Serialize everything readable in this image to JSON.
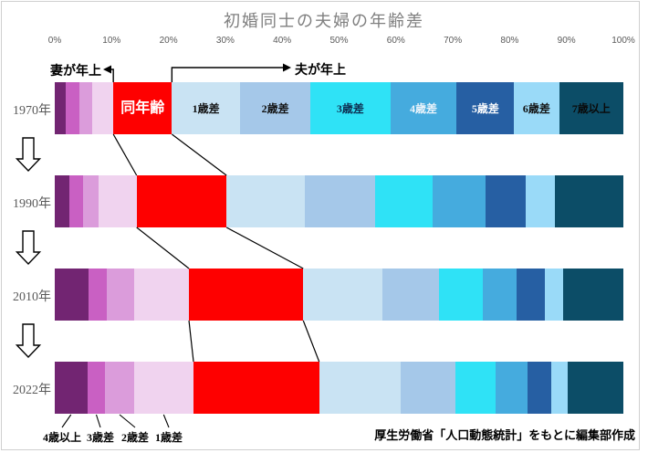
{
  "title": "初婚同士の夫婦の年齢差",
  "annotations": {
    "wife_older": "妻が年上",
    "husband_older": "夫が年上"
  },
  "x_axis": {
    "ticks": [
      "0%",
      "10%",
      "20%",
      "30%",
      "40%",
      "50%",
      "60%",
      "70%",
      "80%",
      "90%",
      "100%"
    ],
    "range": [
      0,
      100
    ]
  },
  "bottom_labels": [
    "4歳以上",
    "3歳差",
    "2歳差",
    "1歳差"
  ],
  "footer": "厚生労働省「人口動態統計」をもとに編集部作成",
  "colors": {
    "same_age_red": "#fe0000",
    "title_gray": "#7f7f7f",
    "axis_gray": "#595959"
  },
  "chart_data": {
    "type": "bar",
    "orientation": "horizontal-stacked",
    "categories": [
      "1970年",
      "1990年",
      "2010年",
      "2022年"
    ],
    "x_range_percent": [
      0,
      100
    ],
    "legend_position": "labels-inside-first-bar",
    "grid": false,
    "series": [
      {
        "name": "妻が4歳以上年上",
        "label": "",
        "label_color": "",
        "color": "#722572",
        "values": [
          1.9,
          2.6,
          5.9,
          5.7
        ]
      },
      {
        "name": "妻が3歳年上",
        "label": "",
        "label_color": "",
        "color": "#c960c3",
        "values": [
          2.4,
          2.4,
          3.2,
          3.2
        ]
      },
      {
        "name": "妻が2歳年上",
        "label": "",
        "label_color": "",
        "color": "#db9cdb",
        "values": [
          2.3,
          2.7,
          4.8,
          5.0
        ]
      },
      {
        "name": "妻が1歳年上",
        "label": "",
        "label_color": "",
        "color": "#f0d3ef",
        "values": [
          3.7,
          6.7,
          9.7,
          10.5
        ]
      },
      {
        "name": "同年齢",
        "label": "同年齢",
        "label_color": "#ffffff",
        "color": "#fe0000",
        "values": [
          10.3,
          15.8,
          20.1,
          22.1
        ]
      },
      {
        "name": "夫が1歳年上",
        "label": "1歳差",
        "label_color": "#111111",
        "color": "#c9e3f3",
        "values": [
          12.0,
          13.8,
          14.0,
          14.3
        ]
      },
      {
        "name": "夫が2歳年上",
        "label": "2歳差",
        "label_color": "#111111",
        "color": "#a5c8e9",
        "values": [
          12.4,
          12.4,
          9.9,
          9.6
        ]
      },
      {
        "name": "夫が3歳年上",
        "label": "3歳差",
        "label_color": "#0d2b4e",
        "color": "#2fe2f6",
        "values": [
          14.0,
          10.0,
          7.7,
          7.1
        ]
      },
      {
        "name": "夫が4歳年上",
        "label": "4歳差",
        "label_color": "#eef5fb",
        "color": "#45abde",
        "values": [
          11.7,
          9.3,
          5.9,
          5.6
        ]
      },
      {
        "name": "夫が5歳年上",
        "label": "5歳差",
        "label_color": "#ffffff",
        "color": "#265fa3",
        "values": [
          10.1,
          7.1,
          5.0,
          4.2
        ]
      },
      {
        "name": "夫が6歳年上",
        "label": "6歳差",
        "label_color": "#111111",
        "color": "#9adaf8",
        "values": [
          7.9,
          5.1,
          3.2,
          2.9
        ]
      },
      {
        "name": "夫が7歳以上年上",
        "label": "7歳以上",
        "label_color": "#0a0a0a",
        "color": "#0c4d67",
        "values": [
          11.3,
          12.1,
          10.6,
          9.8
        ]
      }
    ]
  }
}
